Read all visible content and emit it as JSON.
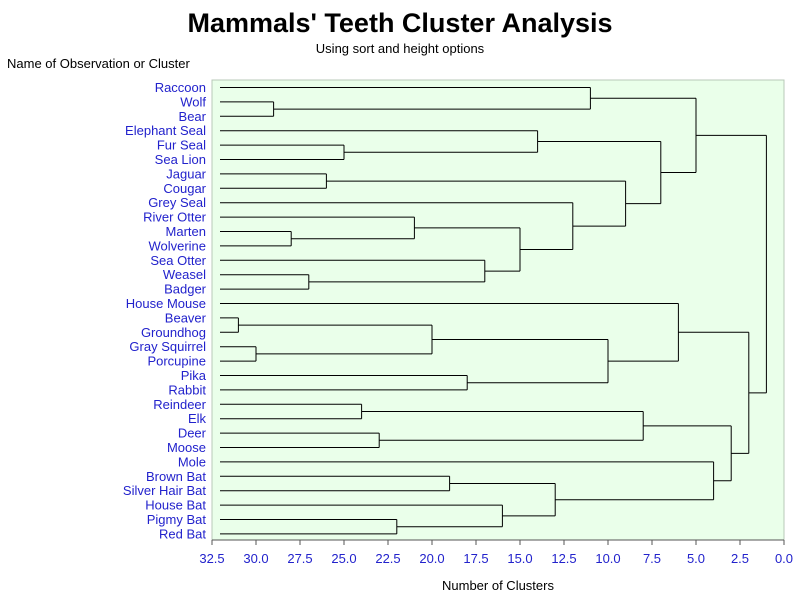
{
  "chart_data": {
    "type": "dendrogram",
    "title": "Mammals' Teeth Cluster Analysis",
    "subtitle": "Using sort and height options",
    "ylabel": "Name of Observation or Cluster",
    "xlabel": "Number of Clusters",
    "xlim": [
      32.5,
      0.0
    ],
    "x_ticks": [
      "32.5",
      "30.0",
      "27.5",
      "25.0",
      "22.5",
      "20.0",
      "17.5",
      "15.0",
      "12.5",
      "10.0",
      "7.5",
      "5.0",
      "2.5",
      "0.0"
    ],
    "leaves": [
      "Raccoon",
      "Wolf",
      "Bear",
      "Elephant Seal",
      "Fur Seal",
      "Sea Lion",
      "Jaguar",
      "Cougar",
      "Grey Seal",
      "River Otter",
      "Marten",
      "Wolverine",
      "Sea Otter",
      "Weasel",
      "Badger",
      "House Mouse",
      "Beaver",
      "Groundhog",
      "Gray Squirrel",
      "Porcupine",
      "Pika",
      "Rabbit",
      "Reindeer",
      "Elk",
      "Deer",
      "Moose",
      "Mole",
      "Brown Bat",
      "Silver Hair Bat",
      "House Bat",
      "Pigmy Bat",
      "Red Bat"
    ],
    "merges": [
      {
        "id": "c31",
        "a": "Wolf",
        "b": "Bear",
        "height": 29
      },
      {
        "id": "c11",
        "a": "Raccoon",
        "b": "c31",
        "height": 11
      },
      {
        "id": "c25",
        "a": "Fur Seal",
        "b": "Sea Lion",
        "height": 25
      },
      {
        "id": "c14",
        "a": "Elephant Seal",
        "b": "c25",
        "height": 14
      },
      {
        "id": "c26",
        "a": "Jaguar",
        "b": "Cougar",
        "height": 26
      },
      {
        "id": "c28",
        "a": "Marten",
        "b": "Wolverine",
        "height": 28
      },
      {
        "id": "c21",
        "a": "River Otter",
        "b": "c28",
        "height": 21
      },
      {
        "id": "c27",
        "a": "Weasel",
        "b": "Badger",
        "height": 27
      },
      {
        "id": "c17",
        "a": "Sea Otter",
        "b": "c27",
        "height": 17
      },
      {
        "id": "c15",
        "a": "c21",
        "b": "c17",
        "height": 15
      },
      {
        "id": "c12",
        "a": "Grey Seal",
        "b": "c15",
        "height": 12
      },
      {
        "id": "c9",
        "a": "c26",
        "b": "c12",
        "height": 9
      },
      {
        "id": "c7",
        "a": "c14",
        "b": "c9",
        "height": 7
      },
      {
        "id": "c5",
        "a": "c11",
        "b": "c7",
        "height": 5
      },
      {
        "id": "c32",
        "a": "Beaver",
        "b": "Groundhog",
        "height": 31
      },
      {
        "id": "c30",
        "a": "Gray Squirrel",
        "b": "Porcupine",
        "height": 30
      },
      {
        "id": "c20",
        "a": "c32",
        "b": "c30",
        "height": 20
      },
      {
        "id": "c18",
        "a": "Pika",
        "b": "Rabbit",
        "height": 18
      },
      {
        "id": "c10",
        "a": "c20",
        "b": "c18",
        "height": 10
      },
      {
        "id": "c6",
        "a": "House Mouse",
        "b": "c10",
        "height": 6
      },
      {
        "id": "c24",
        "a": "Reindeer",
        "b": "Elk",
        "height": 24
      },
      {
        "id": "c23",
        "a": "Deer",
        "b": "Moose",
        "height": 23
      },
      {
        "id": "c8",
        "a": "c24",
        "b": "c23",
        "height": 8
      },
      {
        "id": "c19",
        "a": "Brown Bat",
        "b": "Silver Hair Bat",
        "height": 19
      },
      {
        "id": "c22",
        "a": "Pigmy Bat",
        "b": "Red Bat",
        "height": 22
      },
      {
        "id": "c16",
        "a": "House Bat",
        "b": "c22",
        "height": 16
      },
      {
        "id": "c13",
        "a": "c19",
        "b": "c16",
        "height": 13
      },
      {
        "id": "c4",
        "a": "Mole",
        "b": "c13",
        "height": 4
      },
      {
        "id": "c3",
        "a": "c8",
        "b": "c4",
        "height": 3
      },
      {
        "id": "c2",
        "a": "c6",
        "b": "c3",
        "height": 2
      },
      {
        "id": "c1",
        "a": "c5",
        "b": "c2",
        "height": 1
      }
    ],
    "plot_background": "#eaffea",
    "line_color": "#000000",
    "label_color": "#2222cc",
    "grid": false
  }
}
